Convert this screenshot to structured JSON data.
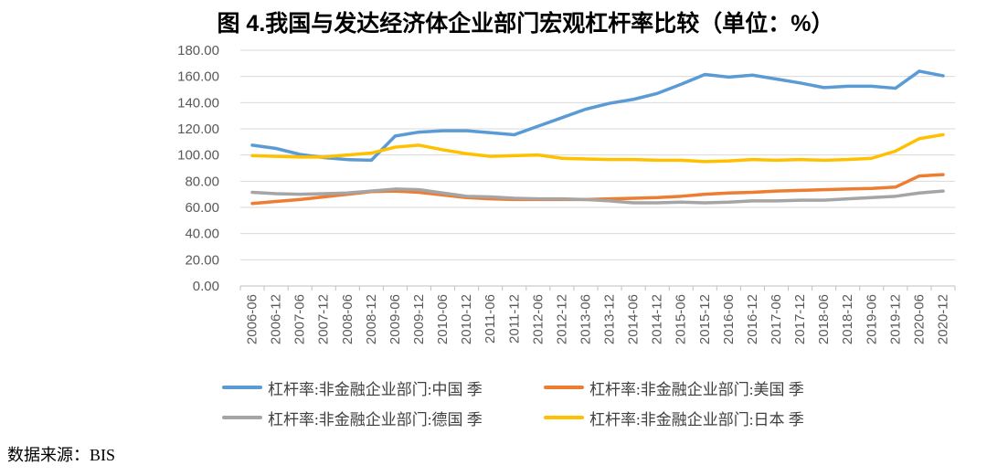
{
  "title": "图 4.我国与发达经济体企业部门宏观杠杆率比较（单位：%）",
  "source_note": "数据来源：BIS",
  "chart_data": {
    "type": "line",
    "title": "图 4.我国与发达经济体企业部门宏观杠杆率比较（单位：%）",
    "xlabel": "",
    "ylabel": "",
    "ylim": [
      0,
      180
    ],
    "y_tick_step": 20,
    "y_tick_labels": [
      "0.00",
      "20.00",
      "40.00",
      "60.00",
      "80.00",
      "100.00",
      "120.00",
      "140.00",
      "160.00",
      "180.00"
    ],
    "grid": "horizontal",
    "legend_position": "bottom",
    "x_label_rotation": -90,
    "grid_color": "#D9D9D9",
    "axis_color": "#BFBFBF",
    "tick_label_color": "#595959",
    "x_labels": [
      "2006-06",
      "2006-12",
      "2007-06",
      "2007-12",
      "2008-06",
      "2008-12",
      "2009-06",
      "2009-12",
      "2010-06",
      "2010-12",
      "2011-06",
      "2011-12",
      "2012-06",
      "2012-12",
      "2013-06",
      "2013-12",
      "2014-06",
      "2014-12",
      "2015-06",
      "2015-12",
      "2016-06",
      "2016-12",
      "2017-06",
      "2017-12",
      "2018-06",
      "2018-12",
      "2019-06",
      "2019-12",
      "2020-06",
      "2020-12"
    ],
    "series": [
      {
        "key": "china",
        "name": "杠杆率:非金融企业部门:中国 季",
        "color": "#5B9BD5",
        "values": [
          107.5,
          105.0,
          100.5,
          98.0,
          96.5,
          96.0,
          114.5,
          117.5,
          118.5,
          118.5,
          117.0,
          115.5,
          122.0,
          128.5,
          135.0,
          139.5,
          142.5,
          147.0,
          154.0,
          161.5,
          159.5,
          161.0,
          158.0,
          155.0,
          151.5,
          152.5,
          152.5,
          151.0,
          164.0,
          160.5
        ]
      },
      {
        "key": "us",
        "name": "杠杆率:非金融企业部门:美国 季",
        "color": "#ED7D31",
        "values": [
          63.0,
          64.5,
          66.0,
          68.0,
          70.0,
          72.0,
          72.5,
          71.5,
          69.5,
          67.5,
          66.5,
          66.0,
          66.0,
          66.0,
          66.0,
          66.5,
          67.0,
          67.5,
          68.5,
          70.0,
          71.0,
          71.5,
          72.5,
          73.0,
          73.5,
          74.0,
          74.5,
          75.5,
          84.0,
          85.0
        ]
      },
      {
        "key": "germany",
        "name": "杠杆率:非金融企业部门:德国 季",
        "color": "#A5A5A5",
        "values": [
          71.5,
          70.5,
          70.0,
          70.5,
          71.0,
          72.5,
          74.0,
          73.5,
          71.0,
          68.5,
          68.0,
          67.0,
          66.5,
          66.5,
          66.0,
          65.0,
          63.5,
          63.5,
          64.0,
          63.5,
          64.0,
          65.0,
          65.0,
          65.5,
          65.5,
          66.5,
          67.5,
          68.5,
          71.0,
          72.5
        ]
      },
      {
        "key": "japan",
        "name": "杠杆率:非金融企业部门:日本 季",
        "color": "#FFC000",
        "values": [
          99.5,
          99.0,
          98.5,
          98.5,
          100.0,
          101.5,
          106.0,
          107.5,
          104.0,
          101.0,
          99.0,
          99.5,
          100.0,
          97.5,
          97.0,
          96.5,
          96.5,
          96.0,
          96.0,
          95.0,
          95.5,
          96.5,
          96.0,
          96.5,
          96.0,
          96.5,
          97.5,
          103.0,
          112.5,
          115.5
        ]
      }
    ]
  }
}
